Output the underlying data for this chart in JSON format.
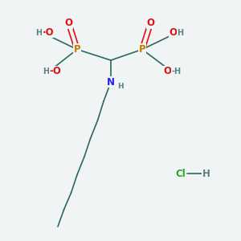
{
  "bg_color": "#f0f4f5",
  "bond_color": "#2a6a5a",
  "line_width": 1.2,
  "atom_colors": {
    "P": "#cc7700",
    "O": "#dd1111",
    "N": "#2222ee",
    "H": "#5a8080",
    "C": "#2a6a5a",
    "Cl": "#22aa22"
  },
  "font_size": 8.5,
  "small_font_size": 7.0,
  "figsize": [
    3.0,
    3.0
  ],
  "dpi": 100,
  "xlim": [
    0,
    10
  ],
  "ylim": [
    0,
    10
  ]
}
